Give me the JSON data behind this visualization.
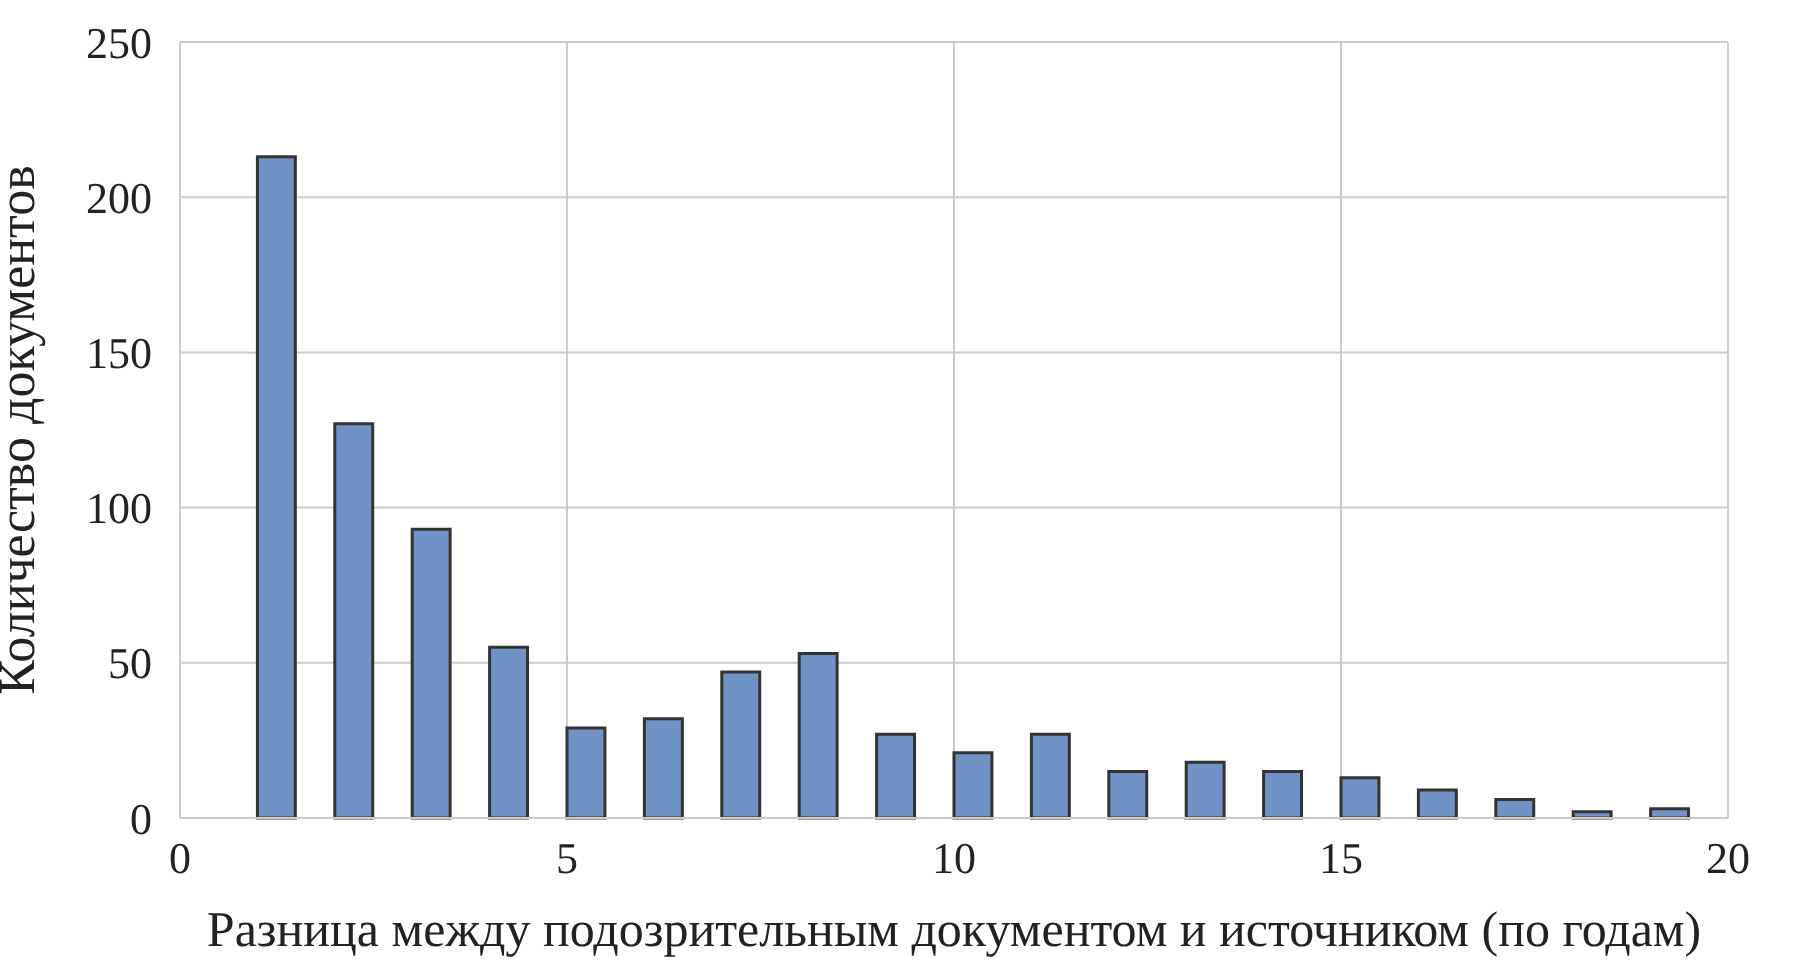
{
  "chart_data": {
    "type": "histogram",
    "xlabel": "Разница между подозрительным документом и источником (по годам)",
    "ylabel": "Количество документов",
    "bins": [
      0,
      0.5,
      1,
      1.5,
      2,
      2.5,
      3,
      3.5,
      4,
      4.5,
      5,
      5.5,
      6,
      6.5,
      7,
      7.5,
      8,
      8.5,
      9,
      9.5,
      10,
      10.5,
      11,
      11.5,
      12,
      12.5,
      13,
      13.5,
      14,
      14.5,
      15,
      15.5,
      16,
      16.5,
      17,
      17.5,
      18,
      18.5,
      19,
      19.5,
      20
    ],
    "values": [
      0,
      0,
      213,
      0,
      127,
      0,
      93,
      0,
      55,
      0,
      29,
      0,
      32,
      0,
      47,
      0,
      53,
      0,
      27,
      0,
      21,
      0,
      27,
      0,
      15,
      0,
      18,
      0,
      15,
      0,
      13,
      0,
      9,
      0,
      6,
      0,
      2,
      0,
      3,
      0
    ],
    "color": "#7093c5",
    "xlim": [
      0,
      20
    ],
    "xticks": [
      0,
      5,
      10,
      15,
      20
    ],
    "ylim": [
      0,
      250
    ],
    "yticks": [
      0,
      50,
      100,
      150,
      200,
      250
    ],
    "grid": true,
    "legend": false
  }
}
